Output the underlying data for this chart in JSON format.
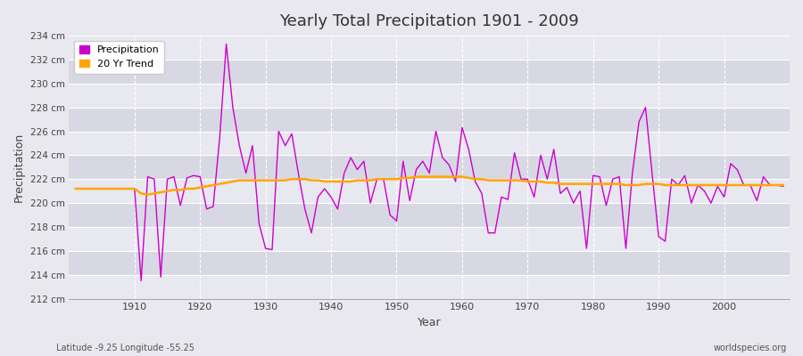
{
  "title": "Yearly Total Precipitation 1901 - 2009",
  "xlabel": "Year",
  "ylabel": "Precipitation",
  "subtitle_left": "Latitude -9.25 Longitude -55.25",
  "subtitle_right": "worldspecies.org",
  "ylim": [
    212,
    234
  ],
  "ytick_step": 2,
  "xlim": [
    1901,
    2009
  ],
  "line_color": "#cc00cc",
  "trend_color": "#FFA500",
  "background_color": "#e8e8ee",
  "plot_bg_color": "#e0e0e8",
  "band_color_light": "#e8e8f0",
  "band_color_dark": "#d8d8e4",
  "grid_color": "#ffffff",
  "legend_labels": [
    "Precipitation",
    "20 Yr Trend"
  ],
  "years": [
    1901,
    1902,
    1903,
    1904,
    1905,
    1906,
    1907,
    1908,
    1909,
    1910,
    1911,
    1912,
    1913,
    1914,
    1915,
    1916,
    1917,
    1918,
    1919,
    1920,
    1921,
    1922,
    1923,
    1924,
    1925,
    1926,
    1927,
    1928,
    1929,
    1930,
    1931,
    1932,
    1933,
    1934,
    1935,
    1936,
    1937,
    1938,
    1939,
    1940,
    1941,
    1942,
    1943,
    1944,
    1945,
    1946,
    1947,
    1948,
    1949,
    1950,
    1951,
    1952,
    1953,
    1954,
    1955,
    1956,
    1957,
    1958,
    1959,
    1960,
    1961,
    1962,
    1963,
    1964,
    1965,
    1966,
    1967,
    1968,
    1969,
    1970,
    1971,
    1972,
    1973,
    1974,
    1975,
    1976,
    1977,
    1978,
    1979,
    1980,
    1981,
    1982,
    1983,
    1984,
    1985,
    1986,
    1987,
    1988,
    1989,
    1990,
    1991,
    1992,
    1993,
    1994,
    1995,
    1996,
    1997,
    1998,
    1999,
    2000,
    2001,
    2002,
    2003,
    2004,
    2005,
    2006,
    2007,
    2008,
    2009
  ],
  "precip": [
    221.2,
    221.2,
    221.2,
    221.2,
    221.2,
    221.2,
    221.2,
    221.2,
    221.2,
    221.2,
    213.5,
    222.2,
    222.0,
    213.8,
    222.0,
    222.2,
    219.8,
    222.1,
    222.3,
    222.2,
    219.5,
    219.7,
    225.5,
    233.3,
    228.0,
    224.8,
    222.5,
    224.8,
    218.3,
    216.2,
    216.1,
    226.0,
    224.8,
    225.8,
    222.5,
    219.5,
    217.5,
    220.5,
    221.2,
    220.5,
    219.5,
    222.5,
    223.8,
    222.8,
    223.5,
    220.0,
    222.0,
    222.0,
    219.0,
    218.5,
    223.5,
    220.2,
    222.8,
    223.5,
    222.5,
    226.0,
    223.8,
    223.2,
    221.8,
    226.3,
    224.5,
    221.8,
    220.8,
    217.5,
    217.5,
    220.5,
    220.3,
    224.2,
    222.0,
    222.0,
    220.5,
    224.0,
    222.0,
    224.5,
    220.8,
    221.3,
    220.0,
    221.0,
    216.2,
    222.3,
    222.2,
    219.8,
    222.0,
    222.2,
    216.2,
    222.5,
    226.8,
    228.0,
    222.5,
    217.2,
    216.8,
    222.0,
    221.5,
    222.3,
    220.0,
    221.5,
    221.0,
    220.0,
    221.4,
    220.5,
    223.3,
    222.8,
    221.5,
    221.5,
    220.2,
    222.2,
    221.5,
    221.5,
    221.4
  ],
  "trend": [
    221.2,
    221.2,
    221.2,
    221.2,
    221.2,
    221.2,
    221.2,
    221.2,
    221.2,
    221.2,
    220.8,
    220.7,
    220.8,
    220.9,
    221.0,
    221.1,
    221.1,
    221.2,
    221.2,
    221.3,
    221.4,
    221.5,
    221.6,
    221.7,
    221.8,
    221.9,
    221.9,
    221.9,
    221.9,
    221.9,
    221.9,
    221.9,
    221.9,
    222.0,
    222.0,
    222.0,
    221.9,
    221.9,
    221.8,
    221.8,
    221.8,
    221.8,
    221.8,
    221.9,
    221.9,
    221.9,
    222.0,
    222.0,
    222.0,
    222.0,
    222.1,
    222.1,
    222.2,
    222.2,
    222.2,
    222.2,
    222.2,
    222.2,
    222.2,
    222.2,
    222.1,
    222.0,
    222.0,
    221.9,
    221.9,
    221.9,
    221.9,
    221.9,
    221.9,
    221.8,
    221.8,
    221.8,
    221.7,
    221.7,
    221.6,
    221.6,
    221.6,
    221.6,
    221.6,
    221.6,
    221.6,
    221.6,
    221.6,
    221.6,
    221.5,
    221.5,
    221.5,
    221.6,
    221.6,
    221.6,
    221.5,
    221.5,
    221.5,
    221.5,
    221.5,
    221.5,
    221.5,
    221.5,
    221.5,
    221.5,
    221.5,
    221.5,
    221.5,
    221.5,
    221.5,
    221.5,
    221.5,
    221.5,
    221.5
  ]
}
